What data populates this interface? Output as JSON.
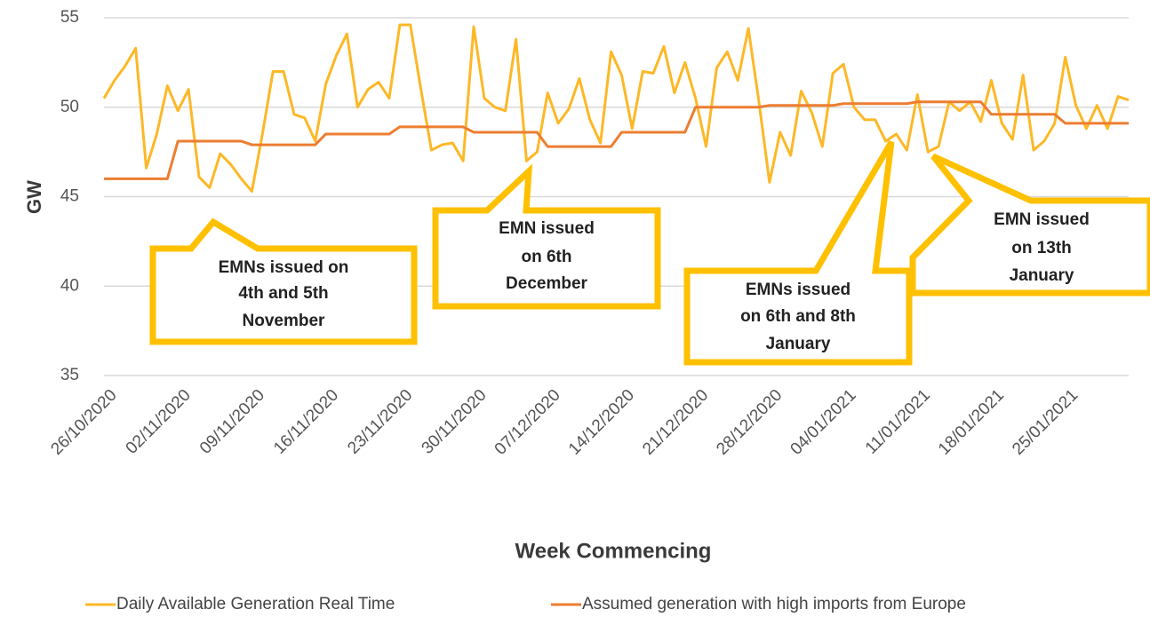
{
  "chart_data": {
    "type": "line",
    "y_label": "GW",
    "x_label": "Week Commencing",
    "categories": [
      "26/10/2020",
      null,
      null,
      null,
      null,
      null,
      null,
      "02/11/2020",
      null,
      null,
      null,
      null,
      null,
      null,
      "09/11/2020",
      null,
      null,
      null,
      null,
      null,
      null,
      "16/11/2020",
      null,
      null,
      null,
      null,
      null,
      null,
      "23/11/2020",
      null,
      null,
      null,
      null,
      null,
      null,
      "30/11/2020",
      null,
      null,
      null,
      null,
      null,
      null,
      "07/12/2020",
      null,
      null,
      null,
      null,
      null,
      null,
      "14/12/2020",
      null,
      null,
      null,
      null,
      null,
      null,
      "21/12/2020",
      null,
      null,
      null,
      null,
      null,
      null,
      "28/12/2020",
      null,
      null,
      null,
      null,
      null,
      null,
      "04/01/2021",
      null,
      null,
      null,
      null,
      null,
      null,
      "11/01/2021",
      null,
      null,
      null,
      null,
      null,
      null,
      "18/01/2021",
      null,
      null,
      null,
      null,
      null,
      null,
      "25/01/2021",
      null,
      null,
      null,
      null,
      null,
      null
    ],
    "series": [
      {
        "name": "Daily Available Generation Real Time",
        "color": "#FDB827",
        "values": [
          50.5,
          51.5,
          52.3,
          53.3,
          46.6,
          48.5,
          51.2,
          49.8,
          51.0,
          46.1,
          45.5,
          47.4,
          46.8,
          46.0,
          45.3,
          48.5,
          52.0,
          52.0,
          49.6,
          49.4,
          48.1,
          51.3,
          52.9,
          54.1,
          50.0,
          51.0,
          51.4,
          50.5,
          54.6,
          54.6,
          51.0,
          47.6,
          47.9,
          48.0,
          47.0,
          54.5,
          50.5,
          50.0,
          49.8,
          53.8,
          47.0,
          47.5,
          50.8,
          49.1,
          49.9,
          51.6,
          49.3,
          48.0,
          53.1,
          51.8,
          48.8,
          52.0,
          51.9,
          53.4,
          50.8,
          52.5,
          50.5,
          47.8,
          52.2,
          53.1,
          51.5,
          54.4,
          50.3,
          45.8,
          48.6,
          47.3,
          50.9,
          49.7,
          47.8,
          51.9,
          52.4,
          50.0,
          49.3,
          49.3,
          48.1,
          48.5,
          47.6,
          50.7,
          47.5,
          47.8,
          50.3,
          49.8,
          50.3,
          49.2,
          51.5,
          49.1,
          48.2,
          51.8,
          47.6,
          48.1,
          49.1,
          52.8,
          50.1,
          48.8,
          50.1,
          48.8,
          50.6,
          50.4
        ]
      },
      {
        "name": "Assumed generation with high imports from Europe",
        "color": "#ED7D31",
        "values": [
          46,
          46,
          46,
          46,
          46,
          46,
          46,
          48.1,
          48.1,
          48.1,
          48.1,
          48.1,
          48.1,
          48.1,
          47.9,
          47.9,
          47.9,
          47.9,
          47.9,
          47.9,
          47.9,
          48.5,
          48.5,
          48.5,
          48.5,
          48.5,
          48.5,
          48.5,
          48.9,
          48.9,
          48.9,
          48.9,
          48.9,
          48.9,
          48.9,
          48.6,
          48.6,
          48.6,
          48.6,
          48.6,
          48.6,
          48.6,
          47.8,
          47.8,
          47.8,
          47.8,
          47.8,
          47.8,
          47.8,
          48.6,
          48.6,
          48.6,
          48.6,
          48.6,
          48.6,
          48.6,
          50.0,
          50.0,
          50.0,
          50.0,
          50.0,
          50.0,
          50.0,
          50.1,
          50.1,
          50.1,
          50.1,
          50.1,
          50.1,
          50.1,
          50.2,
          50.2,
          50.2,
          50.2,
          50.2,
          50.2,
          50.2,
          50.3,
          50.3,
          50.3,
          50.3,
          50.3,
          50.3,
          50.3,
          49.6,
          49.6,
          49.6,
          49.6,
          49.6,
          49.6,
          49.6,
          49.1,
          49.1,
          49.1,
          49.1,
          49.1,
          49.1,
          49.1
        ]
      }
    ],
    "ylim": [
      35,
      55
    ],
    "yticks": [
      35,
      40,
      45,
      50,
      55
    ],
    "grid": true,
    "legend": "bottom",
    "annotations": [
      {
        "lines": [
          "EMNs issued on",
          "4th and 5th",
          "November"
        ]
      },
      {
        "lines": [
          "EMN issued",
          "on 6th",
          "December"
        ]
      },
      {
        "lines": [
          "EMNs issued",
          "on 6th and 8th",
          "January"
        ]
      },
      {
        "lines": [
          "EMN issued",
          "on 13th",
          "January"
        ]
      }
    ]
  }
}
